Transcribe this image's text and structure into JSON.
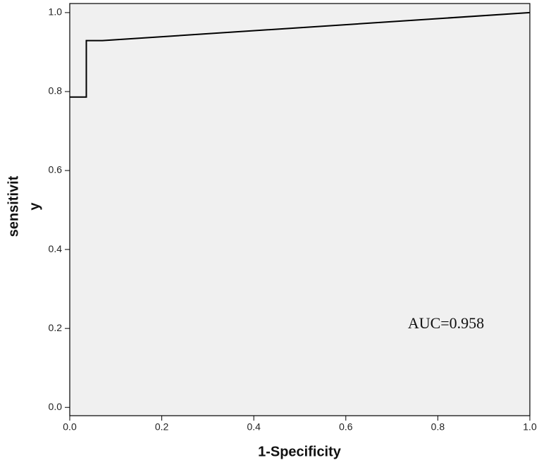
{
  "chart_data": {
    "type": "line",
    "x_label": "1-Specificity",
    "y_label": [
      "sensitivit",
      "y"
    ],
    "annotation": "AUC=0.958",
    "x": [
      0,
      0.036,
      0.036,
      0.071,
      1
    ],
    "series": [
      {
        "color": "#000000",
        "values": [
          0.786,
          0.786,
          0.929,
          0.929,
          1
        ]
      }
    ],
    "xlim": [
      0,
      1
    ],
    "ylim": [
      -0.021,
      1.023
    ],
    "xticks": [
      {
        "value": 0,
        "label": "0.0"
      },
      0.2,
      0.4,
      0.6,
      0.8,
      {
        "value": 1,
        "label": "1.0"
      }
    ],
    "yticks": [
      {
        "value": 0,
        "label": "0.0"
      },
      0.2,
      0.4,
      0.6,
      0.8,
      {
        "value": 1,
        "label": "1.0"
      }
    ],
    "background": "#f0f0f0"
  }
}
